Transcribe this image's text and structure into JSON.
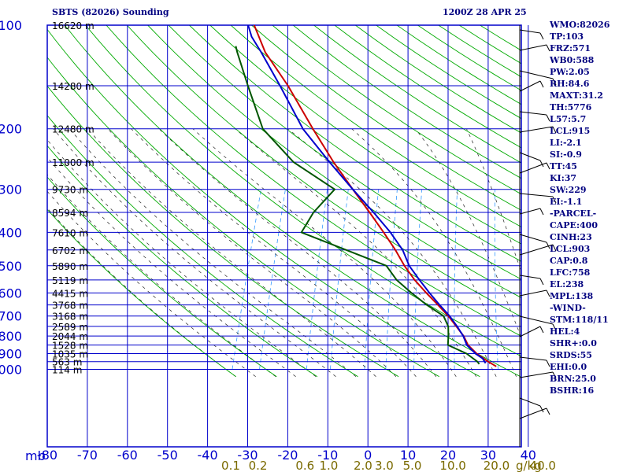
{
  "chart_data": {
    "type": "line",
    "title": "SBTS (82026) Sounding",
    "valid_time": "1200Z 28 APR 25",
    "y_axis_unit": "mb",
    "x_axis_unit": "°C",
    "mixing_ratio_unit": "g/kg",
    "pressure_ticks": [
      "100",
      "200",
      "300",
      "400",
      "500",
      "600",
      "700",
      "800",
      "900",
      "1000"
    ],
    "height_labels": [
      {
        "p": 100,
        "label": "16620 m"
      },
      {
        "p": 150,
        "label": "14280 m"
      },
      {
        "p": 200,
        "label": "12480 m"
      },
      {
        "p": 250,
        "label": "11000 m"
      },
      {
        "p": 300,
        "label": "9730 m"
      },
      {
        "p": 350,
        "label": "8594 m"
      },
      {
        "p": 400,
        "label": "7610 m"
      },
      {
        "p": 450,
        "label": "6702 m"
      },
      {
        "p": 500,
        "label": "5890 m"
      },
      {
        "p": 550,
        "label": "5119 m"
      },
      {
        "p": 600,
        "label": "4415 m"
      },
      {
        "p": 650,
        "label": "3768 m"
      },
      {
        "p": 700,
        "label": "3168 m"
      },
      {
        "p": 750,
        "label": "2589 m"
      },
      {
        "p": 800,
        "label": "2044 m"
      },
      {
        "p": 850,
        "label": "1528 m"
      },
      {
        "p": 900,
        "label": "1035 m"
      },
      {
        "p": 950,
        "label": "563 m"
      },
      {
        "p": 1000,
        "label": "114 m"
      }
    ],
    "temp_ticks": [
      "-80",
      "-70",
      "-60",
      "-50",
      "-40",
      "-30",
      "-20",
      "-10",
      "0",
      "10",
      "20",
      "30",
      "40"
    ],
    "mixing_ratio_labels": [
      "0.1",
      "0.2",
      "0.6",
      "1.0",
      "2.0",
      "3.0",
      "5.0",
      "10.0",
      "20.0",
      "40.0"
    ],
    "series": [
      {
        "name": "Temperature",
        "color": "#cc0000",
        "points": [
          {
            "p": 981,
            "t": 24.0
          },
          {
            "p": 950,
            "t": 21.5
          },
          {
            "p": 900,
            "t": 17.8
          },
          {
            "p": 850,
            "t": 14.8
          },
          {
            "p": 800,
            "t": 12.8
          },
          {
            "p": 750,
            "t": 10.0
          },
          {
            "p": 700,
            "t": 7.0
          },
          {
            "p": 650,
            "t": 3.3
          },
          {
            "p": 600,
            "t": -0.8
          },
          {
            "p": 550,
            "t": -5.0
          },
          {
            "p": 500,
            "t": -9.0
          },
          {
            "p": 450,
            "t": -12.8
          },
          {
            "p": 400,
            "t": -17.5
          },
          {
            "p": 350,
            "t": -23.0
          },
          {
            "p": 300,
            "t": -29.5
          },
          {
            "p": 250,
            "t": -37.0
          },
          {
            "p": 200,
            "t": -45.5
          },
          {
            "p": 150,
            "t": -56.0
          },
          {
            "p": 120,
            "t": -65.0
          },
          {
            "p": 100,
            "t": -70.5
          }
        ]
      },
      {
        "name": "Dewpoint",
        "color": "#005500",
        "points": [
          {
            "p": 965,
            "t": 19.5
          },
          {
            "p": 950,
            "t": 18.8
          },
          {
            "p": 900,
            "t": 15.3
          },
          {
            "p": 870,
            "t": 12.0
          },
          {
            "p": 850,
            "t": 9.8
          },
          {
            "p": 800,
            "t": 9.0
          },
          {
            "p": 750,
            "t": 8.0
          },
          {
            "p": 700,
            "t": 5.8
          },
          {
            "p": 650,
            "t": 0.5
          },
          {
            "p": 600,
            "t": -4.5
          },
          {
            "p": 550,
            "t": -9.5
          },
          {
            "p": 500,
            "t": -13.5
          },
          {
            "p": 400,
            "t": -38.0
          },
          {
            "p": 350,
            "t": -37.0
          },
          {
            "p": 300,
            "t": -34.0
          },
          {
            "p": 250,
            "t": -47.0
          },
          {
            "p": 200,
            "t": -58.0
          },
          {
            "p": 150,
            "t": -66.0
          },
          {
            "p": 120,
            "t": -72.0
          },
          {
            "p": 115,
            "t": -73.0
          }
        ]
      },
      {
        "name": "Parcel",
        "color": "#0000cc",
        "points": [
          {
            "p": 960,
            "t": 21.0
          },
          {
            "p": 930,
            "t": 19.8
          },
          {
            "p": 903,
            "t": 17.7
          },
          {
            "p": 850,
            "t": 14.5
          },
          {
            "p": 800,
            "t": 12.7
          },
          {
            "p": 750,
            "t": 10.2
          },
          {
            "p": 700,
            "t": 7.3
          },
          {
            "p": 650,
            "t": 3.7
          },
          {
            "p": 600,
            "t": 0.0
          },
          {
            "p": 550,
            "t": -3.8
          },
          {
            "p": 500,
            "t": -7.8
          },
          {
            "p": 450,
            "t": -11.0
          },
          {
            "p": 400,
            "t": -15.8
          },
          {
            "p": 350,
            "t": -22.0
          },
          {
            "p": 300,
            "t": -29.5
          },
          {
            "p": 250,
            "t": -38.0
          },
          {
            "p": 200,
            "t": -48.0
          },
          {
            "p": 150,
            "t": -58.0
          },
          {
            "p": 120,
            "t": -66.0
          },
          {
            "p": 108,
            "t": -70.0
          },
          {
            "p": 100,
            "t": -72.0
          }
        ]
      }
    ],
    "stats": [
      "WMO:82026",
      "TP:103",
      "FRZ:571",
      "WB0:588",
      "PW:2.05",
      "RH:84.6",
      "MAXT:31.2",
      "TH:5776",
      "L57:5.7",
      "LCL:915",
      "LI:-2.1",
      "SI:-0.9",
      "TT:45",
      "KI:37",
      "SW:229",
      "EI:-1.1",
      "-PARCEL-",
      "CAPE:400",
      "CINH:23",
      "LCL:903",
      "CAP:0.8",
      "LFC:758",
      "EL:238",
      "MPL:138",
      "-WIND-",
      "STM:118/11",
      "HEL:4",
      "SHR+:0.0",
      "SRDS:55",
      "EHI:0.0",
      "BRN:25.0",
      "BSHR:16"
    ],
    "colors": {
      "frame": "#0000cc",
      "dry_adiabat": "#00aa00",
      "moist_adiabat": "#222222",
      "mixing_ratio": "#3399ff",
      "mixing_label": "#7a6a00"
    }
  }
}
